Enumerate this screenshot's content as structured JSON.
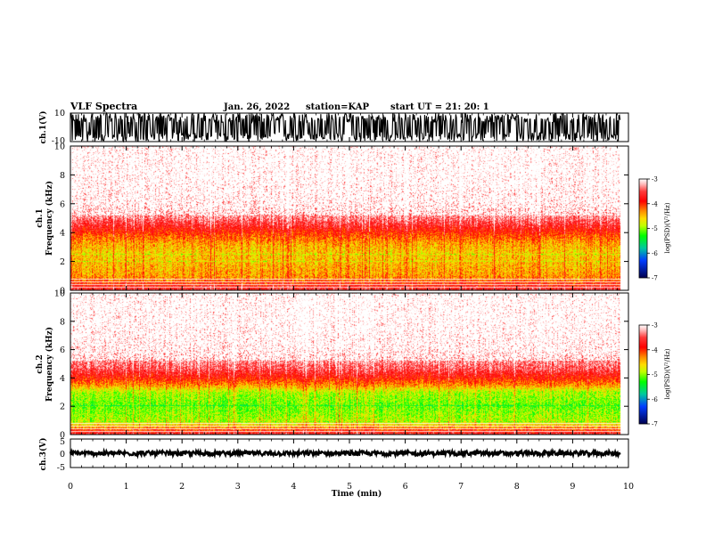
{
  "header": {
    "title": "VLF Spectra",
    "date": "Jan. 26, 2022",
    "station": "station=KAP",
    "start": "start  UT =   21: 20: 1"
  },
  "colors": {
    "spectrogram_scale": [
      "#ffffff",
      "#ff9a9a",
      "#ff0000",
      "#ff6a00",
      "#ffd200",
      "#c8ff00",
      "#00ff00",
      "#00c0a0",
      "#0030ff",
      "#000060"
    ]
  },
  "chart_data": [
    {
      "id": "ch1-waveform",
      "type": "line",
      "ylabel": "ch.1(V)",
      "ylim": [
        -10,
        10
      ],
      "yticks": [
        "10",
        "-10"
      ],
      "xlim": [
        0,
        10
      ],
      "x_unit": "min",
      "description_values": {
        "data_x_extent": [
          0,
          9.85
        ],
        "amplitude_typical": [
          -10,
          10
        ]
      }
    },
    {
      "id": "ch1-spectrogram",
      "type": "heatmap",
      "ylabel": "ch.1\nFrequency (kHz)",
      "ylim": [
        0,
        10
      ],
      "yticks": [
        "0",
        "2",
        "4",
        "6",
        "8",
        "10"
      ],
      "xlim": [
        0,
        10
      ],
      "data_x_extent": [
        0,
        9.85
      ],
      "colorbar": {
        "label": "log(PSD)(V²/Hz)",
        "range": [
          -7,
          -3
        ],
        "ticks": [
          "-3",
          "-4",
          "-5",
          "-6",
          "-7"
        ]
      },
      "band_profile_khz_to_logpsd": [
        [
          0,
          -3.6
        ],
        [
          0.8,
          -4.3
        ],
        [
          1.2,
          -4.4
        ],
        [
          2.0,
          -4.5
        ],
        [
          2.6,
          -4.55
        ],
        [
          3.2,
          -4.4
        ],
        [
          3.8,
          -4.1
        ],
        [
          4.4,
          -3.7
        ],
        [
          5.0,
          -3.35
        ],
        [
          6.0,
          -3.1
        ],
        [
          8.0,
          -3.0
        ],
        [
          10.0,
          -3.0
        ]
      ]
    },
    {
      "id": "ch2-spectrogram",
      "type": "heatmap",
      "ylabel": "ch.2\nFrequency (kHz)",
      "ylim": [
        0,
        10
      ],
      "yticks": [
        "0",
        "2",
        "4",
        "6",
        "8",
        "10"
      ],
      "xlim": [
        0,
        10
      ],
      "data_x_extent": [
        0,
        9.85
      ],
      "colorbar": {
        "label": "log(PSD)(V²/Hz)",
        "range": [
          -7,
          -3
        ],
        "ticks": [
          "-3",
          "-4",
          "-5",
          "-6",
          "-7"
        ]
      },
      "band_profile_khz_to_logpsd": [
        [
          0,
          -3.6
        ],
        [
          0.6,
          -4.5
        ],
        [
          1.0,
          -4.9
        ],
        [
          2.0,
          -5.1
        ],
        [
          3.0,
          -4.9
        ],
        [
          3.4,
          -4.4
        ],
        [
          4.0,
          -3.9
        ],
        [
          4.6,
          -3.5
        ],
        [
          5.2,
          -3.3
        ],
        [
          6.0,
          -3.1
        ],
        [
          8.0,
          -3.0
        ],
        [
          10.0,
          -3.0
        ]
      ]
    },
    {
      "id": "ch3-waveform",
      "type": "line",
      "ylabel": "ch.3(V)",
      "ylim": [
        -5,
        5
      ],
      "yticks": [
        "5",
        "0",
        "-5"
      ],
      "xlim": [
        0,
        10
      ],
      "xlabel": "Time (min)",
      "xticks": [
        "0",
        "1",
        "2",
        "3",
        "4",
        "5",
        "6",
        "7",
        "8",
        "9",
        "10"
      ],
      "description_values": {
        "data_x_extent": [
          0,
          9.85
        ],
        "amplitude_typical": [
          -0.8,
          0.8
        ]
      }
    }
  ]
}
